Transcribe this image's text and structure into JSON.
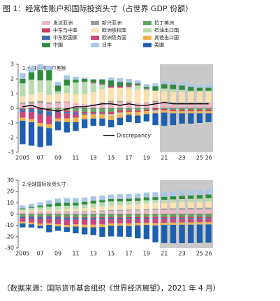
{
  "title": "图 1：经常性账户和国际投资头寸（占世界 GDP 份额）",
  "source": "（数据来源：国际货币基金组织《世界经济展望》，2021 年 4 月）",
  "chart_data": [
    {
      "type": "bar",
      "stacked": true,
      "title": "1.全球经常账户差额",
      "categories": [
        "2005",
        null,
        "07",
        null,
        "09",
        null,
        "11",
        null,
        "13",
        null,
        "15",
        null,
        "17",
        null,
        "19",
        null,
        "21",
        null,
        "23",
        null,
        "25",
        "26"
      ],
      "ylim": [
        -3,
        3
      ],
      "yticks": [
        -3,
        -2,
        -1,
        0,
        1,
        2,
        3
      ],
      "series": [
        {
          "name": "发达亚洲",
          "color": "#f3b6c6",
          "values": [
            0.3,
            0.3,
            0.35,
            0.3,
            0.35,
            0.4,
            0.35,
            0.3,
            0.3,
            0.35,
            0.4,
            0.4,
            0.4,
            0.35,
            0.35,
            0.4,
            0.4,
            0.35,
            0.35,
            0.35,
            0.35,
            0.35
          ]
        },
        {
          "name": "新兴亚洲",
          "color": "#9e9e9e",
          "values": [
            0.1,
            0.15,
            0.15,
            0.1,
            0.1,
            0.05,
            0,
            0,
            0,
            0.05,
            0.1,
            0.1,
            0.05,
            0,
            0.05,
            0.1,
            0.05,
            0.05,
            0.05,
            0.05,
            0.05,
            0.05
          ]
        },
        {
          "name": "拉丁美洲",
          "color": "#5fa85f",
          "values": [
            -0.05,
            0,
            0,
            -0.1,
            -0.1,
            -0.15,
            -0.2,
            -0.25,
            -0.25,
            -0.25,
            -0.25,
            -0.15,
            -0.15,
            -0.15,
            -0.1,
            0,
            -0.05,
            -0.1,
            -0.1,
            -0.1,
            -0.1,
            -0.1
          ]
        },
        {
          "name": "中东与中亚",
          "color": "#d23c5a",
          "values": [
            -0.05,
            -0.05,
            -0.1,
            -0.1,
            -0.1,
            -0.1,
            -0.1,
            -0.1,
            -0.1,
            -0.1,
            -0.15,
            -0.15,
            -0.1,
            -0.1,
            -0.1,
            -0.15,
            -0.1,
            -0.1,
            -0.1,
            -0.1,
            -0.1,
            -0.1
          ]
        },
        {
          "name": "欧洲债权国",
          "color": "#fbe0b0",
          "values": [
            0.4,
            0.5,
            0.6,
            0.5,
            0.5,
            0.6,
            0.6,
            0.7,
            0.8,
            0.9,
            0.9,
            0.9,
            0.9,
            0.9,
            0.8,
            0.7,
            0.7,
            0.7,
            0.7,
            0.7,
            0.7,
            0.7
          ]
        },
        {
          "name": "石油出口国",
          "color": "#b9dcb0",
          "values": [
            0.9,
            1.0,
            0.8,
            1.0,
            0.2,
            0.5,
            0.8,
            0.8,
            0.6,
            0.3,
            -0.1,
            -0.1,
            0.1,
            0.3,
            0.1,
            -0.1,
            0.2,
            0.2,
            0.15,
            0.1,
            0.1,
            0.1
          ]
        },
        {
          "name": "中东欧国家",
          "color": "#3c6eb4",
          "values": [
            -0.15,
            -0.2,
            -0.3,
            -0.3,
            -0.1,
            -0.1,
            -0.1,
            -0.05,
            -0.05,
            -0.05,
            0,
            0,
            0,
            0,
            0,
            0,
            0,
            0,
            0,
            0,
            0,
            0
          ]
        },
        {
          "name": "欧洲债务国",
          "color": "#c8467d",
          "values": [
            -0.4,
            -0.5,
            -0.6,
            -0.6,
            -0.4,
            -0.35,
            -0.25,
            -0.05,
            0.05,
            0.05,
            0.1,
            0.1,
            0.1,
            0.05,
            0.05,
            0,
            0,
            0,
            0,
            0,
            0,
            0
          ]
        },
        {
          "name": "其他出口国",
          "color": "#f2b24a",
          "values": [
            -0.2,
            -0.2,
            -0.25,
            -0.25,
            -0.2,
            -0.25,
            -0.3,
            -0.3,
            -0.3,
            -0.3,
            -0.3,
            -0.25,
            -0.2,
            -0.25,
            -0.2,
            -0.1,
            -0.15,
            -0.15,
            -0.15,
            -0.15,
            -0.15,
            -0.15
          ]
        },
        {
          "name": "中国",
          "color": "#2e8b3e",
          "values": [
            0.3,
            0.5,
            0.7,
            0.7,
            0.4,
            0.4,
            0.2,
            0.2,
            0.2,
            0.3,
            0.4,
            0.3,
            0.2,
            0.1,
            0.1,
            0.3,
            0.3,
            0.3,
            0.3,
            0.25,
            0.2,
            0.2
          ]
        },
        {
          "name": "日本",
          "color": "#a9c8e8",
          "values": [
            0.4,
            0.4,
            0.4,
            0.3,
            0.25,
            0.3,
            0.2,
            0.1,
            0.05,
            0.05,
            0.2,
            0.25,
            0.25,
            0.2,
            0.2,
            0.2,
            0.2,
            0.2,
            0.2,
            0.2,
            0.2,
            0.2
          ]
        },
        {
          "name": "美国",
          "color": "#1d5fae",
          "values": [
            -1.6,
            -1.6,
            -1.4,
            -1.2,
            -0.6,
            -0.7,
            -0.6,
            -0.6,
            -0.5,
            -0.5,
            -0.5,
            -0.5,
            -0.5,
            -0.5,
            -0.5,
            -0.8,
            -0.9,
            -0.8,
            -0.7,
            -0.7,
            -0.65,
            -0.6
          ]
        }
      ],
      "line": {
        "name": "Discrepancy",
        "color": "#000000",
        "values": [
          0.1,
          0.2,
          0.0,
          -0.1,
          -0.2,
          -0.05,
          0.1,
          0.1,
          0.2,
          0.3,
          0.3,
          0.2,
          0.3,
          0.2,
          0.2,
          0.3,
          0.4,
          0.3,
          0.3,
          0.3,
          0.3,
          0.3
        ]
      }
    },
    {
      "type": "bar",
      "stacked": true,
      "title": "2.全球国际投资头寸",
      "categories": [
        "2005",
        null,
        "07",
        null,
        "09",
        null,
        "11",
        null,
        "13",
        null,
        "15",
        null,
        "17",
        null,
        "19",
        null,
        "21",
        null,
        "23",
        null,
        "25",
        "26"
      ],
      "ylim": [
        -30,
        30
      ],
      "yticks": [
        -30,
        -20,
        -10,
        0,
        10,
        20,
        30
      ],
      "series": [
        {
          "name": "发达亚洲",
          "color": "#f3b6c6",
          "values": [
            1.5,
            1.7,
            1.8,
            1.6,
            1.8,
            2,
            2,
            2.1,
            2.2,
            2.4,
            2.6,
            2.8,
            3,
            3.1,
            3.3,
            3.6,
            3.7,
            3.8,
            3.9,
            4,
            4.1,
            4.2
          ]
        },
        {
          "name": "新兴亚洲",
          "color": "#9e9e9e",
          "values": [
            0.3,
            0.4,
            0.5,
            0.5,
            0.5,
            0.5,
            0.5,
            0.6,
            0.6,
            0.7,
            0.8,
            0.9,
            1,
            1,
            1.1,
            1.2,
            1.2,
            1.2,
            1.3,
            1.3,
            1.3,
            1.4
          ]
        },
        {
          "name": "拉丁美洲",
          "color": "#5fa85f",
          "values": [
            -2,
            -2,
            -2.2,
            -1.8,
            -2.2,
            -2.5,
            -2.5,
            -2.7,
            -2.6,
            -2.6,
            -2.3,
            -2.4,
            -2.6,
            -2.5,
            -2.5,
            -2.4,
            -2.5,
            -2.5,
            -2.5,
            -2.5,
            -2.5,
            -2.5
          ]
        },
        {
          "name": "中东与中亚",
          "color": "#d23c5a",
          "values": [
            -0.5,
            -0.5,
            -0.6,
            -0.6,
            -0.6,
            -0.7,
            -0.7,
            -0.7,
            -0.7,
            -0.8,
            -0.8,
            -0.9,
            -0.9,
            -0.9,
            -0.9,
            -1,
            -1,
            -1,
            -1,
            -1,
            -1,
            -1
          ]
        },
        {
          "name": "欧洲债权国",
          "color": "#fbe0b0",
          "values": [
            1,
            1.3,
            1.2,
            1.5,
            1.8,
            2,
            2,
            2.5,
            3,
            3.5,
            3.8,
            4,
            4.2,
            4.5,
            4.8,
            5,
            5,
            5.2,
            5.3,
            5.4,
            5.5,
            5.6
          ]
        },
        {
          "name": "石油出口国",
          "color": "#b9dcb0",
          "values": [
            1.5,
            2,
            2.5,
            3,
            3,
            2.8,
            3,
            3.3,
            3.5,
            3.8,
            4,
            3.5,
            3.2,
            3,
            3,
            2.8,
            2.8,
            2.8,
            2.8,
            2.8,
            2.8,
            2.8
          ]
        },
        {
          "name": "中东欧国家",
          "color": "#3c6eb4",
          "values": [
            -1.3,
            -1.5,
            -1.8,
            -1.7,
            -1.8,
            -1.8,
            -1.6,
            -1.6,
            -1.6,
            -1.5,
            -1.4,
            -1.3,
            -1.3,
            -1.2,
            -1.1,
            -1.1,
            -1,
            -1,
            -1,
            -1,
            -1,
            -1
          ]
        },
        {
          "name": "欧洲债务国",
          "color": "#c8467d",
          "values": [
            -3,
            -3.5,
            -4,
            -4,
            -4.5,
            -4.6,
            -4.3,
            -4.5,
            -4.6,
            -4.3,
            -3.8,
            -3.6,
            -3.6,
            -3.3,
            -3.2,
            -3.5,
            -3.2,
            -3.1,
            -3,
            -2.9,
            -2.8,
            -2.7
          ]
        },
        {
          "name": "其他出口国",
          "color": "#f2b24a",
          "values": [
            -1.5,
            -1.6,
            -1.8,
            -1.5,
            -1.8,
            -2,
            -2,
            -2.2,
            -2.2,
            -2.3,
            -2,
            -2.1,
            -2.2,
            -2.1,
            -2,
            -2.1,
            -2,
            -2,
            -2,
            -2,
            -2,
            -2
          ]
        },
        {
          "name": "中国",
          "color": "#2e8b3e",
          "values": [
            0.8,
            1,
            1.5,
            2.2,
            2.8,
            2.8,
            2.5,
            2.5,
            2.6,
            2.1,
            2.1,
            2.2,
            2.3,
            2.4,
            2.6,
            2.5,
            2.6,
            2.7,
            2.9,
            3,
            3.2,
            3.3
          ]
        },
        {
          "name": "日本",
          "color": "#a9c8e8",
          "values": [
            2.5,
            2.7,
            2.9,
            3.4,
            3.8,
            4.2,
            4.3,
            3.7,
            3.8,
            3.8,
            3.9,
            4.2,
            4,
            4.1,
            4.3,
            4.2,
            4.2,
            4.2,
            4.3,
            4.3,
            4.4,
            4.4
          ]
        },
        {
          "name": "美国",
          "color": "#1d5fae",
          "values": [
            -3.5,
            -2.8,
            -2.3,
            -6.5,
            -4,
            -4.2,
            -6,
            -6.3,
            -7,
            -8.7,
            -9.5,
            -9.7,
            -9.5,
            -11.5,
            -12.5,
            -15,
            -16,
            -16.2,
            -16.2,
            -16.2,
            -16.2,
            -16.2
          ]
        }
      ]
    }
  ]
}
